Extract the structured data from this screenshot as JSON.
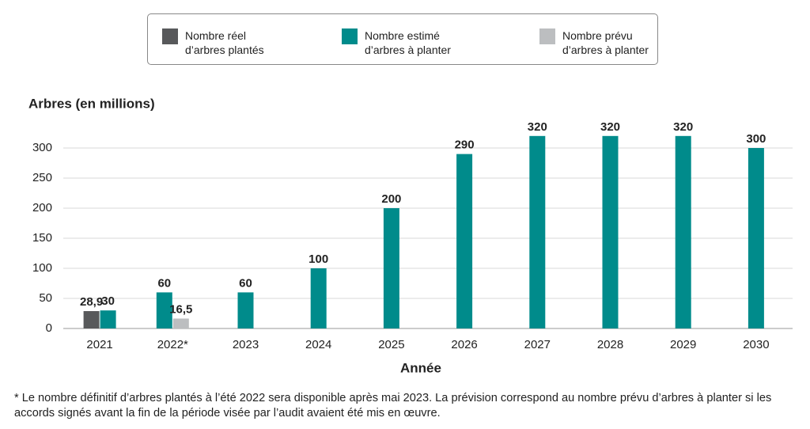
{
  "chart_data": {
    "type": "bar",
    "y_label": "Arbres (en millions)",
    "x_label": "Année",
    "categories": [
      "2021",
      "2022*",
      "2023",
      "2024",
      "2025",
      "2026",
      "2027",
      "2028",
      "2029",
      "2030"
    ],
    "series": [
      {
        "name": "Nombre réel d’arbres plantés",
        "color": "#58595b",
        "values": [
          28.9,
          null,
          null,
          null,
          null,
          null,
          null,
          null,
          null,
          null
        ],
        "value_labels": [
          "28,9",
          null,
          null,
          null,
          null,
          null,
          null,
          null,
          null,
          null
        ]
      },
      {
        "name": "Nombre estimé d’arbres à planter",
        "color": "#008b8b",
        "values": [
          30,
          60,
          60,
          100,
          200,
          290,
          320,
          320,
          320,
          300
        ]
      },
      {
        "name": "Nombre prévu d’arbres à planter",
        "color": "#bcbec0",
        "values": [
          null,
          16.5,
          null,
          null,
          null,
          null,
          null,
          null,
          null,
          null
        ],
        "value_labels": [
          null,
          "16,5",
          null,
          null,
          null,
          null,
          null,
          null,
          null,
          null
        ]
      }
    ],
    "ylim": [
      0,
      320
    ],
    "yticks": [
      0,
      50,
      100,
      150,
      200,
      250,
      300
    ],
    "grid": true,
    "footnote": "* Le nombre définitif d’arbres plantés à l’été 2022 sera disponible après mai 2023. La prévision correspond au nombre prévu d’arbres à planter si les accords signés avant la fin de la période visée par l’audit avaient été mis en œuvre."
  }
}
